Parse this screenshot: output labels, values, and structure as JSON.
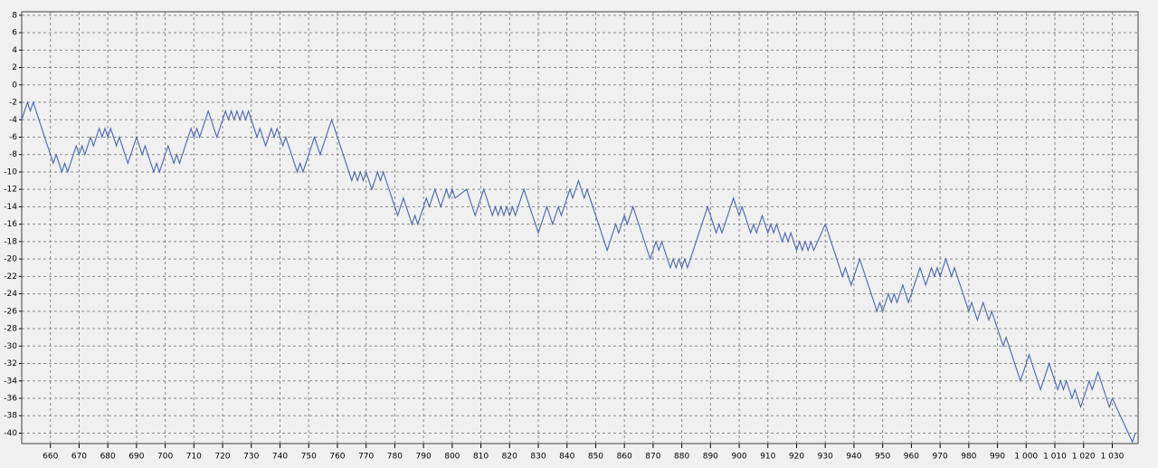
{
  "chart_data": {
    "type": "line",
    "x": [
      650,
      652,
      653,
      654,
      660,
      661,
      662,
      664,
      665,
      666,
      669,
      670,
      671,
      672,
      674,
      675,
      677,
      678,
      679,
      680,
      681,
      683,
      684,
      687,
      690,
      692,
      693,
      696,
      697,
      698,
      701,
      703,
      704,
      705,
      708,
      709,
      710,
      711,
      712,
      713,
      715,
      718,
      721,
      722,
      723,
      724,
      725,
      726,
      727,
      728,
      729,
      732,
      733,
      735,
      737,
      738,
      739,
      741,
      742,
      744,
      746,
      747,
      748,
      752,
      754,
      756,
      758,
      765,
      766,
      767,
      768,
      769,
      770,
      772,
      774,
      775,
      776,
      781,
      783,
      786,
      787,
      788,
      791,
      792,
      794,
      796,
      798,
      799,
      800,
      801,
      805,
      808,
      811,
      814,
      815,
      816,
      817,
      818,
      819,
      820,
      821,
      822,
      825,
      830,
      833,
      835,
      837,
      838,
      841,
      842,
      844,
      846,
      847,
      854,
      857,
      858,
      860,
      861,
      863,
      869,
      871,
      872,
      873,
      876,
      877,
      878,
      879,
      880,
      881,
      882,
      889,
      892,
      893,
      894,
      898,
      900,
      901,
      904,
      905,
      906,
      908,
      910,
      911,
      912,
      913,
      915,
      916,
      917,
      918,
      920,
      921,
      922,
      923,
      924,
      925,
      926,
      930,
      936,
      937,
      939,
      942,
      948,
      949,
      950,
      952,
      953,
      954,
      955,
      957,
      959,
      963,
      965,
      967,
      968,
      969,
      970,
      972,
      974,
      975,
      980,
      981,
      983,
      985,
      987,
      988,
      992,
      993,
      998,
      1001,
      1005,
      1008,
      1011,
      1012,
      1013,
      1014,
      1016,
      1017,
      1019,
      1022,
      1023,
      1025,
      1029,
      1030,
      1037,
      1038
    ],
    "values": [
      -4,
      -2,
      -3,
      -2,
      -8,
      -9,
      -8,
      -10,
      -9,
      -10,
      -7,
      -8,
      -7,
      -8,
      -6,
      -7,
      -5,
      -6,
      -5,
      -6,
      -5,
      -7,
      -6,
      -9,
      -6,
      -8,
      -7,
      -10,
      -9,
      -10,
      -7,
      -9,
      -8,
      -9,
      -6,
      -5,
      -6,
      -5,
      -6,
      -5,
      -3,
      -6,
      -3,
      -4,
      -3,
      -4,
      -3,
      -4,
      -3,
      -4,
      -3,
      -6,
      -5,
      -7,
      -5,
      -6,
      -5,
      -7,
      -6,
      -8,
      -10,
      -9,
      -10,
      -6,
      -8,
      -6,
      -4,
      -11,
      -10,
      -11,
      -10,
      -11,
      -10,
      -12,
      -10,
      -11,
      -10,
      -15,
      -13,
      -16,
      -15,
      -16,
      -13,
      -14,
      -12,
      -14,
      -12,
      -13,
      -12,
      -13,
      -12,
      -15,
      -12,
      -15,
      -14,
      -15,
      -14,
      -15,
      -14,
      -15,
      -14,
      -15,
      -12,
      -17,
      -14,
      -16,
      -14,
      -15,
      -12,
      -13,
      -11,
      -13,
      -12,
      -19,
      -16,
      -17,
      -15,
      -16,
      -14,
      -20,
      -18,
      -19,
      -18,
      -21,
      -20,
      -21,
      -20,
      -21,
      -20,
      -21,
      -14,
      -17,
      -16,
      -17,
      -13,
      -15,
      -14,
      -17,
      -16,
      -17,
      -15,
      -17,
      -16,
      -17,
      -16,
      -18,
      -17,
      -18,
      -17,
      -19,
      -18,
      -19,
      -18,
      -19,
      -18,
      -19,
      -16,
      -22,
      -21,
      -23,
      -20,
      -26,
      -25,
      -26,
      -24,
      -25,
      -24,
      -25,
      -23,
      -25,
      -21,
      -23,
      -21,
      -22,
      -21,
      -22,
      -20,
      -22,
      -21,
      -26,
      -25,
      -27,
      -25,
      -27,
      -26,
      -30,
      -29,
      -34,
      -31,
      -35,
      -32,
      -35,
      -34,
      -35,
      -34,
      -36,
      -35,
      -37,
      -34,
      -35,
      -33,
      -37,
      -36,
      -41,
      -40
    ],
    "color": "#4a66ac",
    "xlim": [
      650,
      1039
    ],
    "ylim": [
      -41.2,
      8.4
    ],
    "xticks": [
      660,
      670,
      680,
      690,
      700,
      710,
      720,
      730,
      740,
      750,
      760,
      770,
      780,
      790,
      800,
      810,
      820,
      830,
      840,
      850,
      860,
      870,
      880,
      890,
      900,
      910,
      920,
      930,
      940,
      950,
      960,
      970,
      980,
      990,
      {
        "value": 1000,
        "label": "1 000"
      },
      {
        "value": 1010,
        "label": "1 010"
      },
      {
        "value": 1020,
        "label": "1 020"
      },
      {
        "value": 1030,
        "label": "1 030"
      }
    ],
    "yticks": [
      -40,
      -38,
      -36,
      -34,
      -32,
      -30,
      -28,
      -26,
      -24,
      -22,
      -20,
      -18,
      -16,
      -14,
      -12,
      -10,
      -8,
      -6,
      -4,
      -2,
      0,
      2,
      4,
      6,
      8
    ],
    "grid": true
  }
}
